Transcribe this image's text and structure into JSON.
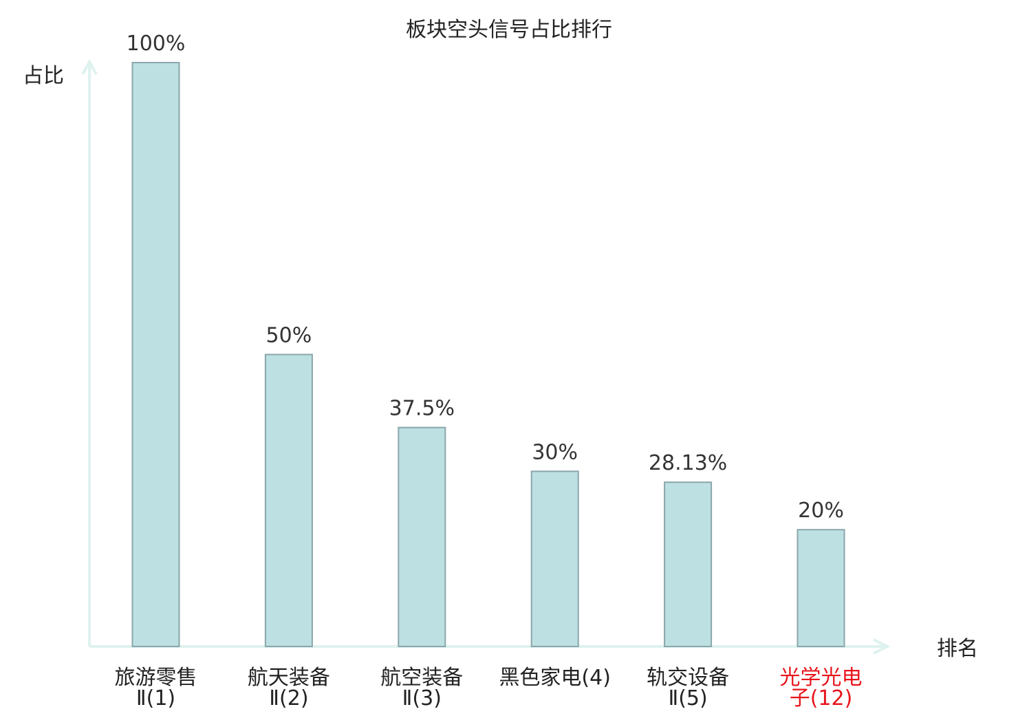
{
  "chart_data": {
    "type": "bar",
    "title": "板块空头信号占比排行",
    "ylabel": "占比",
    "xlabel": "排名",
    "ylim": [
      0,
      100
    ],
    "grid": false,
    "legend": "none",
    "categories": [
      {
        "name": "旅游零售",
        "rank": "Ⅱ(1)",
        "highlight": false
      },
      {
        "name": "航天装备",
        "rank": "Ⅱ(2)",
        "highlight": false
      },
      {
        "name": "航空装备",
        "rank": "Ⅱ(3)",
        "highlight": false
      },
      {
        "name": "黑色家电(4)",
        "rank": "",
        "highlight": false
      },
      {
        "name": "轨交设备",
        "rank": "Ⅱ(5)",
        "highlight": false
      },
      {
        "name": "光学光电",
        "rank": "子(12)",
        "highlight": true
      }
    ],
    "values": [
      100,
      50,
      37.5,
      30,
      28.13,
      20
    ],
    "value_labels": [
      "100%",
      "50%",
      "37.5%",
      "30%",
      "28.13%",
      "20%"
    ],
    "colors": {
      "bar_fill": "#bde0e3",
      "bar_stroke": "#8aa6aa",
      "axis": "#def2ef",
      "text": "#222222",
      "value_text": "#333333",
      "highlight": "#e8141b"
    }
  }
}
